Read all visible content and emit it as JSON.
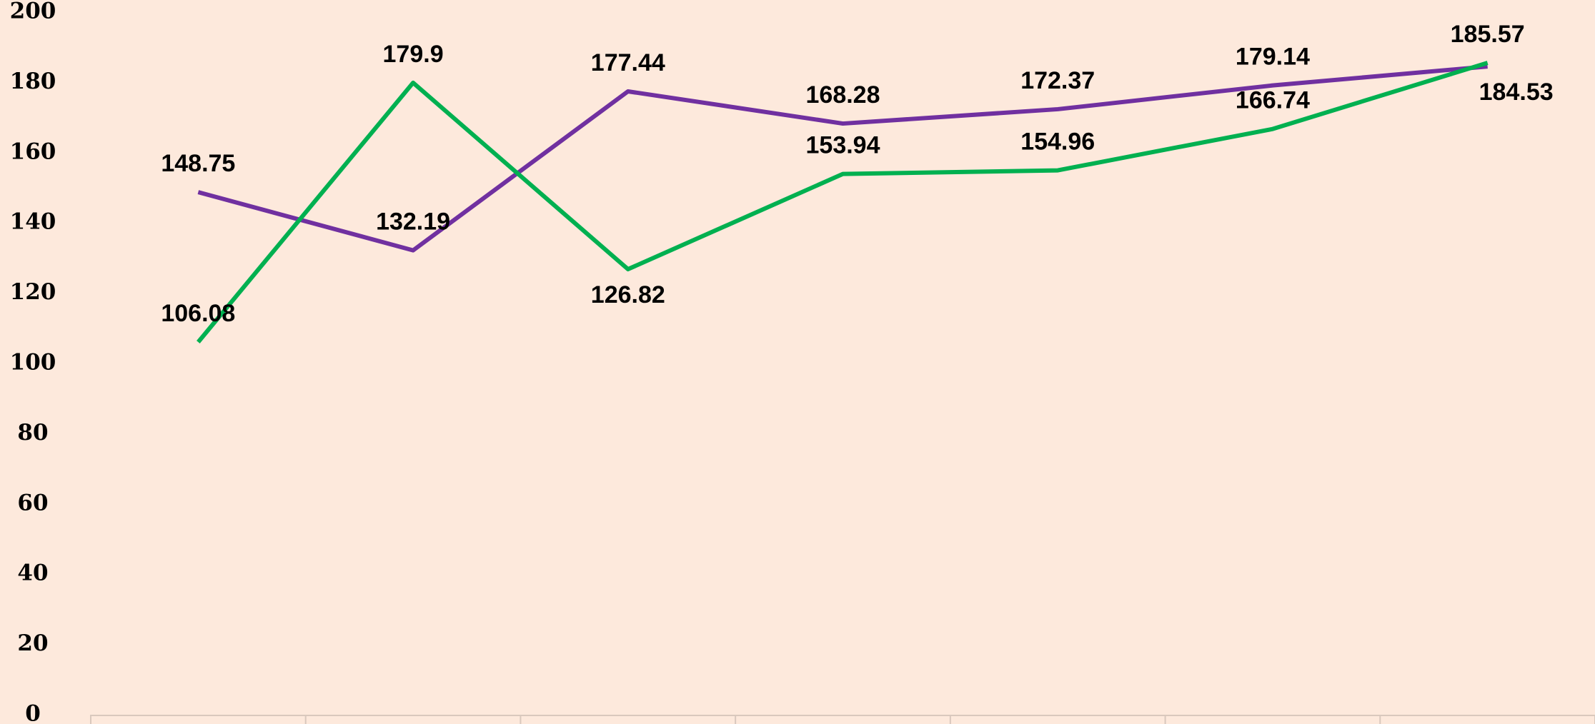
{
  "chart_data": {
    "type": "line",
    "categories": [
      null,
      null,
      null,
      null,
      null,
      null,
      null
    ],
    "series": [
      {
        "color": "#7030a0",
        "values": [
          148.75,
          132.19,
          177.44,
          168.28,
          172.37,
          179.14,
          184.53
        ]
      },
      {
        "color": "#00b050",
        "values": [
          106.08,
          179.9,
          126.82,
          153.94,
          154.96,
          166.74,
          185.57
        ]
      }
    ],
    "ylim": [
      0,
      200
    ],
    "yticks": [
      0,
      20,
      40,
      60,
      80,
      100,
      120,
      140,
      160,
      180,
      200
    ],
    "grid": false
  }
}
